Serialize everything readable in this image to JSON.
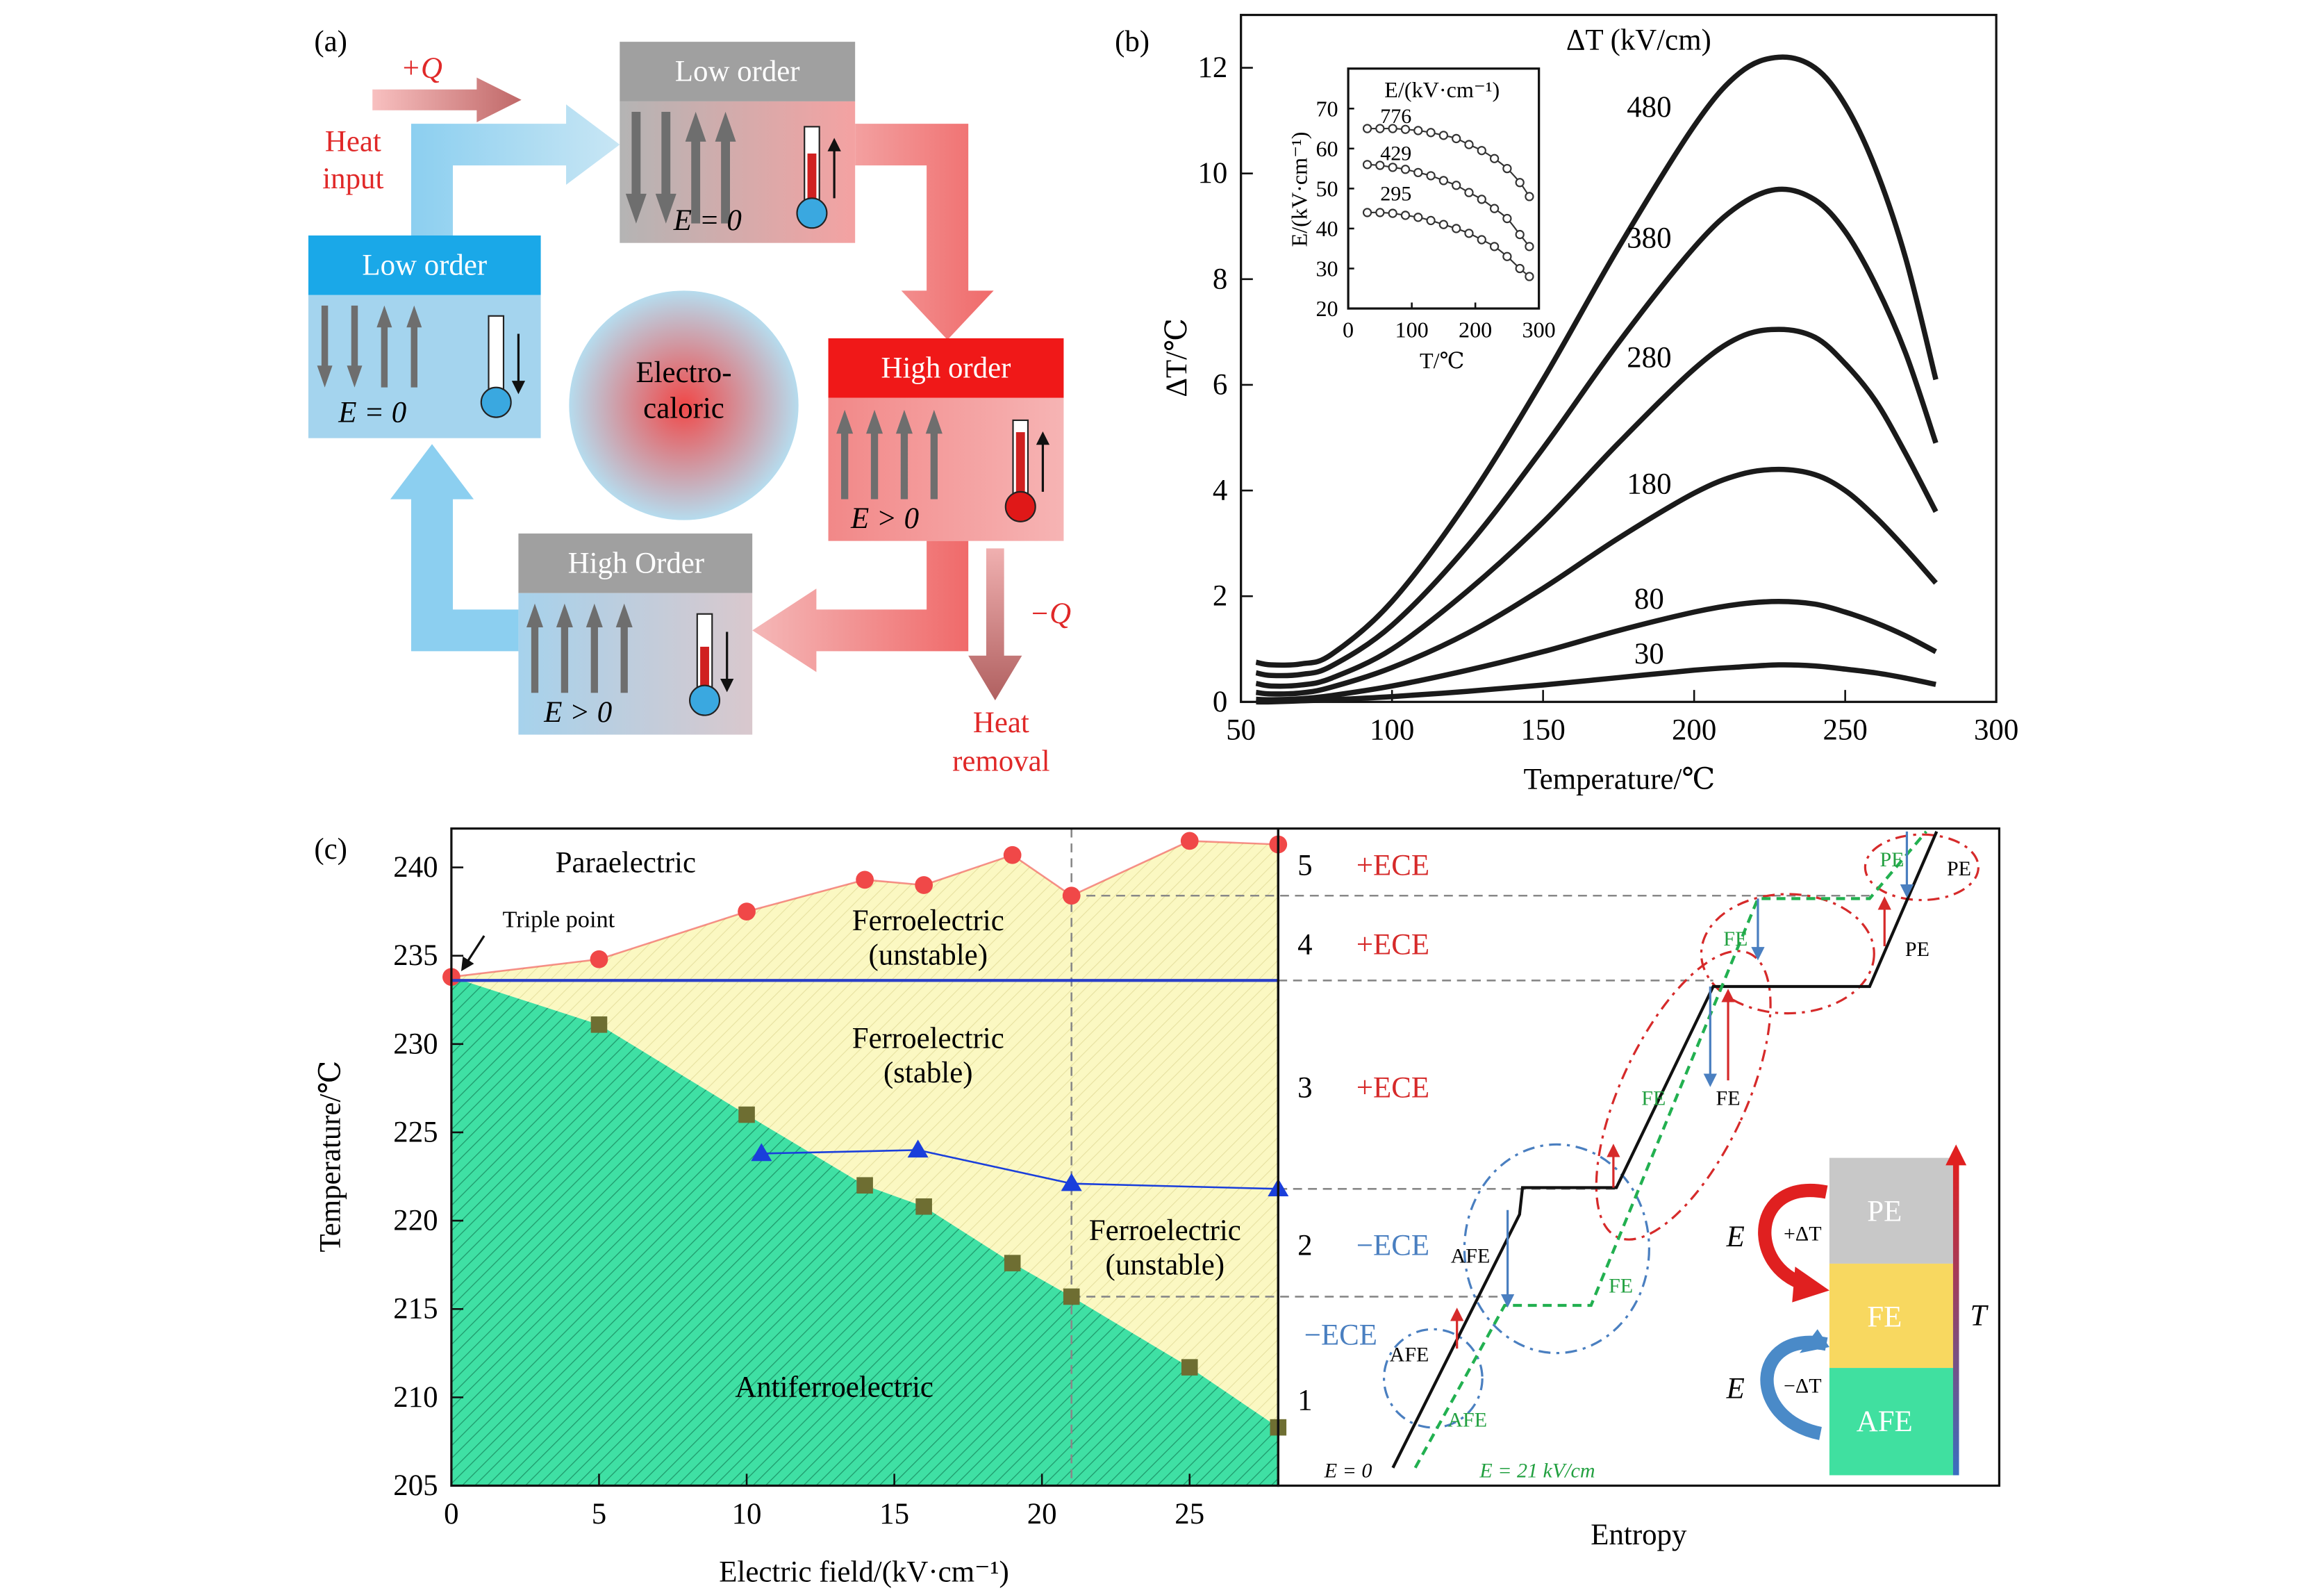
{
  "panel_labels": [
    "(a)",
    "(b)",
    "(c)"
  ],
  "cycle_diagram": {
    "states": [
      {
        "title": "Low order",
        "field": "E = 0"
      },
      {
        "title": "High order",
        "field": "E > 0"
      },
      {
        "title": "High Order",
        "field": "E > 0"
      },
      {
        "title": "Low order",
        "field": "E = 0"
      }
    ],
    "center": [
      "Electro-",
      "caloric"
    ],
    "heat_input": {
      "symbol": "+Q",
      "label": [
        "Heat",
        "input"
      ]
    },
    "heat_removal": {
      "symbol": "−Q",
      "label": [
        "Heat",
        "removal"
      ]
    }
  },
  "chart_data": [
    {
      "type": "line",
      "legend_title": "ΔT  (kV/cm)",
      "xlabel": "Temperature/℃",
      "ylabel": "ΔT/℃",
      "x": [
        55,
        60,
        70,
        80,
        100,
        125,
        150,
        175,
        200,
        215,
        228,
        240,
        250,
        260,
        270,
        280
      ],
      "series": [
        {
          "name": "480",
          "color": "#1a1a1a",
          "values": [
            0.75,
            0.7,
            0.72,
            0.9,
            1.9,
            3.8,
            6.1,
            8.6,
            10.9,
            11.9,
            12.2,
            12.0,
            11.3,
            10.1,
            8.4,
            6.1
          ]
        },
        {
          "name": "380",
          "color": "#1a1a1a",
          "values": [
            0.55,
            0.5,
            0.52,
            0.68,
            1.45,
            2.95,
            4.8,
            6.8,
            8.6,
            9.4,
            9.7,
            9.5,
            8.9,
            7.9,
            6.6,
            4.9
          ]
        },
        {
          "name": "280",
          "color": "#1a1a1a",
          "values": [
            0.35,
            0.3,
            0.32,
            0.45,
            1.0,
            2.1,
            3.4,
            4.9,
            6.3,
            6.9,
            7.05,
            6.9,
            6.4,
            5.7,
            4.7,
            3.6
          ]
        },
        {
          "name": "180",
          "color": "#1a1a1a",
          "values": [
            0.18,
            0.15,
            0.17,
            0.28,
            0.65,
            1.3,
            2.15,
            3.1,
            3.95,
            4.3,
            4.4,
            4.3,
            4.0,
            3.5,
            2.9,
            2.25
          ]
        },
        {
          "name": "80",
          "color": "#1a1a1a",
          "values": [
            0.05,
            0.04,
            0.06,
            0.12,
            0.3,
            0.6,
            0.95,
            1.35,
            1.7,
            1.85,
            1.9,
            1.85,
            1.7,
            1.5,
            1.25,
            0.95
          ]
        },
        {
          "name": "30",
          "color": "#1a1a1a",
          "values": [
            0.0,
            0.0,
            0.02,
            0.04,
            0.1,
            0.2,
            0.32,
            0.46,
            0.6,
            0.66,
            0.7,
            0.68,
            0.62,
            0.55,
            0.45,
            0.33
          ]
        }
      ],
      "xlim": [
        50,
        300
      ],
      "ylim": [
        0,
        13
      ],
      "xticks": [
        50,
        100,
        150,
        200,
        250,
        300
      ],
      "yticks": [
        0,
        2,
        4,
        6,
        8,
        10,
        12
      ]
    },
    {
      "type": "line",
      "markers": true,
      "title": "E/(kV·cm⁻¹)",
      "xlabel": "T/℃",
      "ylabel": "E/(kV·cm⁻¹)",
      "x": [
        30,
        50,
        70,
        90,
        110,
        130,
        150,
        170,
        190,
        210,
        230,
        250,
        270,
        285
      ],
      "series": [
        {
          "name": "776",
          "color": "#333333",
          "values": [
            65,
            65,
            65,
            64.8,
            64.5,
            64,
            63.3,
            62.5,
            61,
            59.5,
            57.5,
            55,
            51.5,
            48
          ]
        },
        {
          "name": "429",
          "color": "#333333",
          "values": [
            56,
            55.8,
            55.3,
            54.8,
            54,
            53.2,
            52,
            50.8,
            49,
            47.3,
            45,
            42.5,
            38.5,
            35.5
          ]
        },
        {
          "name": "295",
          "color": "#333333",
          "values": [
            44,
            44,
            43.8,
            43.3,
            42.8,
            42,
            41,
            40,
            38.8,
            37.2,
            35.5,
            33,
            30,
            28
          ]
        }
      ],
      "xlim": [
        0,
        300
      ],
      "ylim": [
        20,
        80
      ],
      "xticks": [
        0,
        100,
        200,
        300
      ],
      "yticks": [
        20,
        30,
        40,
        50,
        60,
        70
      ]
    },
    {
      "type": "scatter",
      "xlabel": "Electric field/(kV·cm⁻¹)",
      "ylabel": "Temperature/℃",
      "regions": [
        [
          "Paraelectric"
        ],
        [
          "Ferroelectric",
          "(unstable)"
        ],
        [
          "Ferroelectric",
          "(stable)"
        ],
        [
          "Ferroelectric",
          "(unstable)"
        ],
        [
          "Antiferroelectric"
        ]
      ],
      "annotation": "Triple point",
      "series": [
        {
          "marker": "circle",
          "line": true,
          "color": "#f04848",
          "x": [
            0,
            5,
            10,
            14,
            16,
            19,
            21,
            25,
            28
          ],
          "values": [
            233.8,
            234.8,
            237.5,
            239.3,
            239,
            240.7,
            238.4,
            241.5,
            241.3
          ]
        },
        {
          "marker": "square",
          "line": false,
          "color": "#6e6e32",
          "x": [
            5,
            10,
            14,
            16,
            19,
            21,
            25,
            28
          ],
          "values": [
            231.1,
            226,
            222,
            220.8,
            217.6,
            215.7,
            211.7,
            208.3
          ]
        },
        {
          "marker": "triangle",
          "line": true,
          "color": "#1a3fdb",
          "x": [
            10.5,
            15.8,
            21,
            28
          ],
          "values": [
            223.8,
            224,
            222.1,
            221.8
          ]
        },
        {
          "marker": "none",
          "line": true,
          "color": "#2a3fc8",
          "x": [
            0,
            28
          ],
          "values": [
            233.6,
            233.6
          ]
        }
      ],
      "xlim": [
        0,
        28
      ],
      "ylim": [
        205,
        242.2
      ],
      "xticks": [
        0,
        5,
        10,
        15,
        20,
        25
      ],
      "yticks": [
        205,
        210,
        215,
        220,
        225,
        230,
        235,
        240
      ]
    }
  ],
  "entropy_diagram": {
    "stages": [
      {
        "number": "5",
        "effect": "+ECE"
      },
      {
        "number": "4",
        "effect": "+ECE"
      },
      {
        "number": "3",
        "effect": "+ECE"
      },
      {
        "number": "2",
        "effect": "−ECE"
      },
      {
        "effect": "−ECE"
      },
      {
        "number": "1"
      }
    ],
    "xlabel": "Entropy",
    "phase_labels": [
      "PE",
      "PE",
      "FE",
      "PE",
      "FE",
      "FE",
      "AFE",
      "FE",
      "AFE",
      "AFE"
    ],
    "field_labels": [
      "E = 0",
      "E = 21 kV/cm"
    ],
    "legend": {
      "phases": [
        "PE",
        "FE",
        "AFE"
      ],
      "heating": {
        "field": "E",
        "change": "+ΔT"
      },
      "cooling": {
        "field": "E",
        "change": "−ΔT"
      },
      "axis": "T"
    }
  }
}
